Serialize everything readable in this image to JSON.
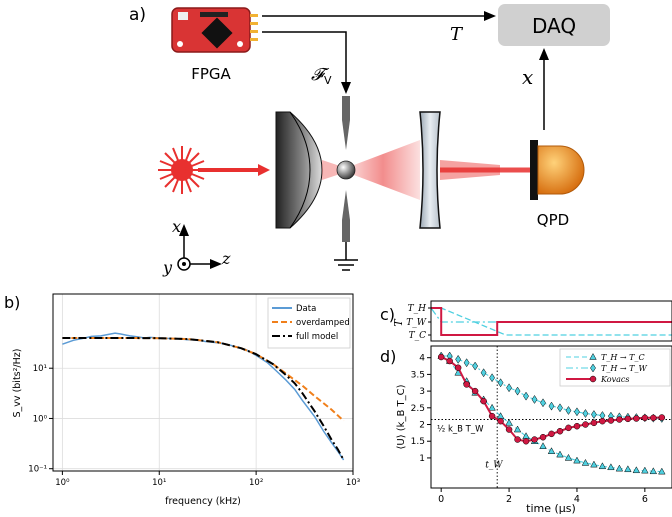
{
  "panel_a": {
    "label": "a)",
    "fpga_label": "FPGA",
    "daq_label": "DAQ",
    "qpd_label": "QPD",
    "signal_T": "T",
    "signal_x": "x",
    "signal_F": "𝓕",
    "signal_F_sub": "V",
    "axis_x": "x",
    "axis_y": "y",
    "axis_z": "z",
    "colors": {
      "fpga": "#d93434",
      "daq": "#d0d0d0",
      "laser": "#e8302f",
      "qpd": "#e8891c"
    }
  },
  "chart_data": [
    {
      "panel": "b)",
      "type": "line",
      "xscale": "log",
      "yscale": "log",
      "xlim": [
        0.8,
        1000
      ],
      "ylim": [
        0.09,
        300
      ],
      "xlabel": "frequency (kHz)",
      "ylabel": "S_vv (bits²/Hz)",
      "xticks": [
        "10⁰",
        "10¹",
        "10²",
        "10³"
      ],
      "yticks": [
        "10⁻¹",
        "10⁰",
        "10¹"
      ],
      "grid": true,
      "legend_position": "top-right",
      "series": [
        {
          "name": "Data",
          "color": "#5b9bd5",
          "style": "solid",
          "x": [
            1,
            1.3,
            1.7,
            2,
            2.5,
            3,
            3.5,
            4,
            5,
            6,
            7,
            8,
            10,
            13,
            17,
            20,
            25,
            30,
            40,
            50,
            60,
            80,
            100,
            130,
            160,
            200,
            250,
            300,
            400,
            500,
            600,
            700,
            800
          ],
          "y": [
            30,
            36,
            40,
            43,
            44,
            47,
            50,
            48,
            44,
            42,
            40,
            41,
            40,
            39,
            38,
            37,
            36,
            34,
            32,
            30,
            27,
            23,
            18,
            13,
            9,
            6,
            3.8,
            2.3,
            1.1,
            0.55,
            0.33,
            0.22,
            0.15
          ]
        },
        {
          "name": "overdamped",
          "color": "#f07f1a",
          "style": "dashed",
          "x": [
            1,
            2,
            5,
            10,
            20,
            40,
            70,
            100,
            150,
            200,
            300,
            400,
            600,
            800
          ],
          "y": [
            40,
            40,
            40,
            39.6,
            38,
            33,
            25,
            19,
            12,
            8,
            4.5,
            2.8,
            1.5,
            0.9
          ]
        },
        {
          "name": "full model",
          "color": "#000000",
          "style": "dashdot",
          "x": [
            1,
            2,
            5,
            10,
            20,
            40,
            70,
            100,
            150,
            200,
            250,
            300,
            400,
            500,
            600,
            700,
            800
          ],
          "y": [
            40,
            40,
            40,
            39.5,
            38,
            33,
            25,
            19,
            12,
            7.5,
            5,
            3.2,
            1.4,
            0.7,
            0.38,
            0.24,
            0.15
          ]
        }
      ]
    },
    {
      "panel": "c)",
      "type": "line",
      "ylabel": "T",
      "yticks": [
        "T_H",
        "T_W",
        "T_C"
      ],
      "xlim": [
        -0.3,
        6.8
      ],
      "series": [
        {
          "name": "T_H → T_C",
          "color": "#4fd0e0",
          "style": "dashed",
          "x": [
            -0.3,
            0,
            1.9,
            6.8
          ],
          "levels": [
            "H",
            "H",
            "C",
            "C"
          ]
        },
        {
          "name": "T_H → T_W",
          "color": "#4fd0e0",
          "style": "dashdot",
          "x": [
            -0.3,
            0,
            1.9,
            6.8
          ],
          "levels": [
            "H",
            "W",
            "W",
            "W"
          ]
        },
        {
          "name": "Kovacs",
          "color": "#d01842",
          "style": "solid",
          "x": [
            -0.3,
            0,
            0,
            1.65,
            1.65,
            6.8
          ],
          "levels": [
            "H",
            "H",
            "C",
            "C",
            "W",
            "W"
          ]
        }
      ]
    },
    {
      "panel": "d)",
      "type": "scatter",
      "xlim": [
        -0.3,
        6.8
      ],
      "ylim": [
        0.1,
        4.35
      ],
      "xlabel": "time (μs)",
      "ylabel": "⟨U⟩ (k_B T_C)",
      "xticks": [
        "0",
        "2",
        "4",
        "6"
      ],
      "yticks": [
        "1",
        "1.5",
        "2",
        "2.5",
        "3",
        "3.5",
        "4"
      ],
      "annotation_level": "½ k_B T_W",
      "annotation_time": "t_W",
      "legend_position": "top-right",
      "series": [
        {
          "name": "T_H → T_C",
          "color": "#4fd0e0",
          "marker": "triangle",
          "x": [
            0,
            0.25,
            0.5,
            0.75,
            1,
            1.25,
            1.5,
            1.75,
            2,
            2.25,
            2.5,
            2.75,
            3,
            3.25,
            3.5,
            3.75,
            4,
            4.25,
            4.5,
            4.75,
            5,
            5.25,
            5.5,
            5.75,
            6,
            6.25,
            6.5
          ],
          "y": [
            4.05,
            3.9,
            3.55,
            3.3,
            2.95,
            2.75,
            2.5,
            2.25,
            2.05,
            1.85,
            1.65,
            1.5,
            1.35,
            1.2,
            1.1,
            1.0,
            0.92,
            0.85,
            0.8,
            0.75,
            0.72,
            0.68,
            0.66,
            0.63,
            0.62,
            0.6,
            0.59
          ]
        },
        {
          "name": "T_H → T_W",
          "color": "#4fd0e0",
          "marker": "diamond",
          "x": [
            0,
            0.25,
            0.5,
            0.75,
            1,
            1.25,
            1.5,
            1.75,
            2,
            2.25,
            2.5,
            2.75,
            3,
            3.25,
            3.5,
            3.75,
            4,
            4.25,
            4.5,
            4.75,
            5,
            5.25,
            5.5,
            5.75,
            6,
            6.25,
            6.5
          ],
          "y": [
            4.05,
            4.05,
            3.95,
            3.85,
            3.75,
            3.55,
            3.4,
            3.25,
            3.1,
            3.0,
            2.85,
            2.75,
            2.65,
            2.55,
            2.5,
            2.42,
            2.38,
            2.33,
            2.3,
            2.27,
            2.25,
            2.23,
            2.22,
            2.21,
            2.2,
            2.19,
            2.18
          ]
        },
        {
          "name": "Kovacs",
          "color": "#d01842",
          "marker": "circle",
          "line": true,
          "x": [
            0,
            0.25,
            0.5,
            0.75,
            1,
            1.25,
            1.5,
            1.75,
            2,
            2.25,
            2.5,
            2.75,
            3,
            3.25,
            3.5,
            3.75,
            4,
            4.25,
            4.5,
            4.75,
            5,
            5.25,
            5.5,
            5.75,
            6,
            6.25,
            6.5
          ],
          "y": [
            4.02,
            3.9,
            3.7,
            3.2,
            3.0,
            2.7,
            2.25,
            2.1,
            1.85,
            1.55,
            1.5,
            1.55,
            1.62,
            1.72,
            1.8,
            1.9,
            1.95,
            2.0,
            2.05,
            2.1,
            2.12,
            2.15,
            2.17,
            2.18,
            2.2,
            2.2,
            2.21
          ]
        }
      ]
    }
  ]
}
